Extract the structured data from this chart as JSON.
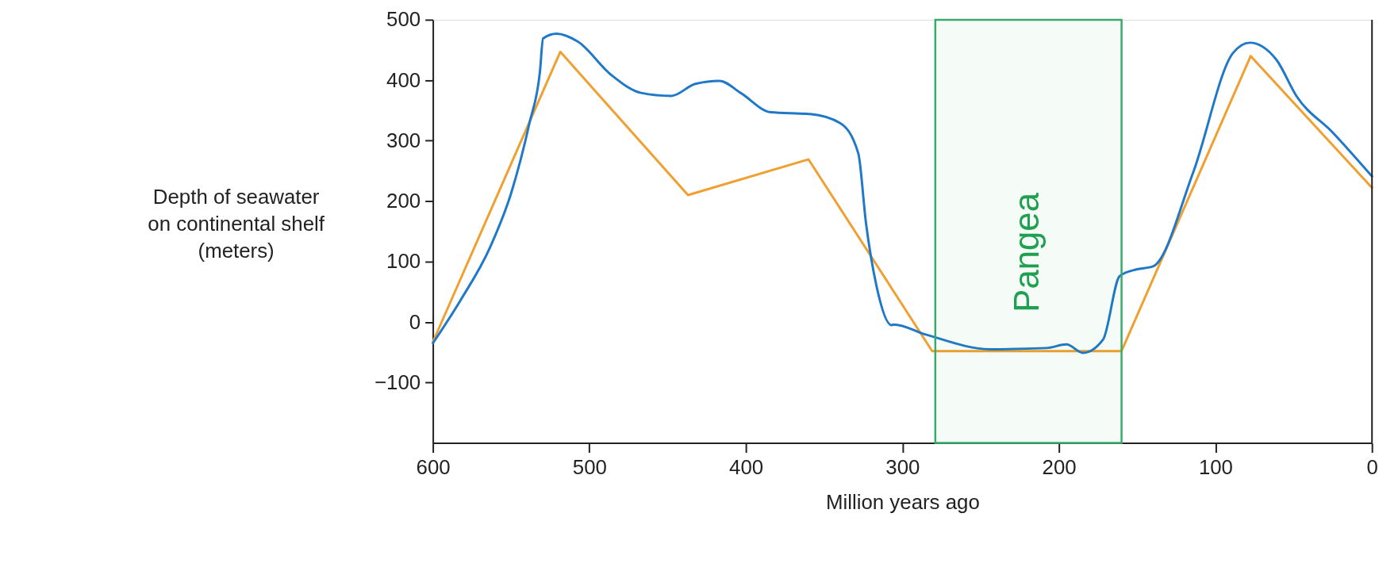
{
  "chart_data": {
    "type": "line",
    "xlabel": "Million years ago",
    "ylabel": "Depth of seawater\non continental shelf\n(meters)",
    "xlim": [
      600,
      0
    ],
    "ylim": [
      -200,
      500
    ],
    "xticks": [
      600,
      500,
      400,
      300,
      200,
      100,
      0
    ],
    "yticks": [
      500,
      400,
      300,
      200,
      100,
      0,
      -100
    ],
    "grid": false,
    "line_style": "solid",
    "marker": "none",
    "series": [
      {
        "color": "#f0a030",
        "x": [
          600,
          518.6,
          437,
          360,
          281,
          160,
          77.5,
          0
        ],
        "values": [
          -33,
          447,
          210,
          269,
          -48,
          -48,
          440,
          222
        ]
      },
      {
        "color": "#1f78c8",
        "x": [
          600,
          582.6,
          563.4,
          549.9,
          538.3,
          531.6,
          529.6,
          521,
          507.5,
          486.2,
          467,
          447.7,
          432.3,
          416.9,
          403.4,
          384.1,
          359,
          339.8,
          328.2,
          323.3,
          316.6,
          307,
          305.7,
          284.6,
          244.1,
          208,
          195.2,
          184.6,
          171.8,
          161.2,
          150.5,
          139.9,
          114.3,
          88.8,
          78.1,
          61.1,
          48.3,
          24.9,
          0
        ],
        "values": [
          -35,
          35,
          124,
          214,
          329,
          414,
          469,
          477,
          464,
          409,
          379,
          374,
          394,
          399,
          379,
          347,
          344,
          329,
          279,
          164,
          60,
          -5,
          -4,
          -21,
          -45,
          -43,
          -37,
          -51,
          -29,
          76,
          87,
          92,
          247,
          445,
          462,
          434,
          374,
          313,
          241
        ]
      }
    ],
    "bands": [
      {
        "axis": "x",
        "from": 279,
        "to": 160,
        "label": "Pangea",
        "color": "#3aaa6a"
      }
    ]
  }
}
